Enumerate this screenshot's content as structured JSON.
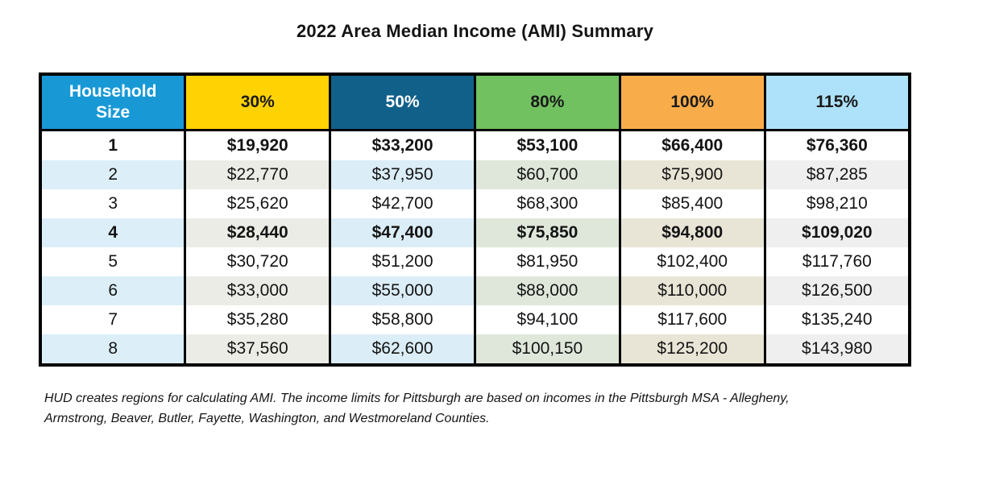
{
  "title": "2022 Area Median Income (AMI) Summary",
  "table": {
    "columns": [
      {
        "id": "household-size",
        "label": "Household Size",
        "bg": "#1899D6",
        "fg": "#FFFFFF",
        "stripe": "#DCEFF9"
      },
      {
        "id": "30pct",
        "label": "30%",
        "bg": "#FFD204",
        "fg": "#1A1A1A",
        "stripe": "#ECECE7"
      },
      {
        "id": "50pct",
        "label": "50%",
        "bg": "#11608A",
        "fg": "#FFFFFF",
        "stripe": "#DBEDF7"
      },
      {
        "id": "80pct",
        "label": "80%",
        "bg": "#71C161",
        "fg": "#1A1A1A",
        "stripe": "#DFE7DA"
      },
      {
        "id": "100pct",
        "label": "100%",
        "bg": "#F9AD4A",
        "fg": "#1A1A1A",
        "stripe": "#E9E5D6"
      },
      {
        "id": "115pct",
        "label": "115%",
        "bg": "#AEE2FA",
        "fg": "#1A1A1A",
        "stripe": "#EFEFEF"
      }
    ],
    "rows": [
      {
        "household_size": "1",
        "values": [
          "$19,920",
          "$33,200",
          "$53,100",
          "$66,400",
          "$76,360"
        ],
        "bold": true,
        "striped": false
      },
      {
        "household_size": "2",
        "values": [
          "$22,770",
          "$37,950",
          "$60,700",
          "$75,900",
          "$87,285"
        ],
        "bold": false,
        "striped": true
      },
      {
        "household_size": "3",
        "values": [
          "$25,620",
          "$42,700",
          "$68,300",
          "$85,400",
          "$98,210"
        ],
        "bold": false,
        "striped": false
      },
      {
        "household_size": "4",
        "values": [
          "$28,440",
          "$47,400",
          "$75,850",
          "$94,800",
          "$109,020"
        ],
        "bold": true,
        "striped": true
      },
      {
        "household_size": "5",
        "values": [
          "$30,720",
          "$51,200",
          "$81,950",
          "$102,400",
          "$117,760"
        ],
        "bold": false,
        "striped": false
      },
      {
        "household_size": "6",
        "values": [
          "$33,000",
          "$55,000",
          "$88,000",
          "$110,000",
          "$126,500"
        ],
        "bold": false,
        "striped": true
      },
      {
        "household_size": "7",
        "values": [
          "$35,280",
          "$58,800",
          "$94,100",
          "$117,600",
          "$135,240"
        ],
        "bold": false,
        "striped": false
      },
      {
        "household_size": "8",
        "values": [
          "$37,560",
          "$62,600",
          "$100,150",
          "$125,200",
          "$143,980"
        ],
        "bold": false,
        "striped": true
      }
    ]
  },
  "footnote": {
    "lines": [
      "HUD creates regions for calculating AMI. The income limits for Pittsburgh are based on incomes in the Pittsburgh MSA - Allegheny,",
      "Armstrong, Beaver, Butler, Fayette, Washington, and Westmoreland Counties."
    ]
  },
  "chart_data": {
    "type": "table",
    "title": "2022 Area Median Income (AMI) Summary",
    "columns": [
      "Household Size",
      "30%",
      "50%",
      "80%",
      "100%",
      "115%"
    ],
    "rows": [
      [
        "1",
        "$19,920",
        "$33,200",
        "$53,100",
        "$66,400",
        "$76,360"
      ],
      [
        "2",
        "$22,770",
        "$37,950",
        "$60,700",
        "$75,900",
        "$87,285"
      ],
      [
        "3",
        "$25,620",
        "$42,700",
        "$68,300",
        "$85,400",
        "$98,210"
      ],
      [
        "4",
        "$28,440",
        "$47,400",
        "$75,850",
        "$94,800",
        "$109,020"
      ],
      [
        "5",
        "$30,720",
        "$51,200",
        "$81,950",
        "$102,400",
        "$117,760"
      ],
      [
        "6",
        "$33,000",
        "$55,000",
        "$88,000",
        "$110,000",
        "$126,500"
      ],
      [
        "7",
        "$35,280",
        "$58,800",
        "$94,100",
        "$117,600",
        "$135,240"
      ],
      [
        "8",
        "$37,560",
        "$62,600",
        "$100,150",
        "$125,200",
        "$143,980"
      ]
    ],
    "bold_rows": [
      "1",
      "4"
    ],
    "footnote": "HUD creates regions for calculating AMI. The income limits for Pittsburgh are based on incomes in the Pittsburgh MSA - Allegheny, Armstrong, Beaver, Butler, Fayette, Washington, and Westmoreland Counties."
  }
}
